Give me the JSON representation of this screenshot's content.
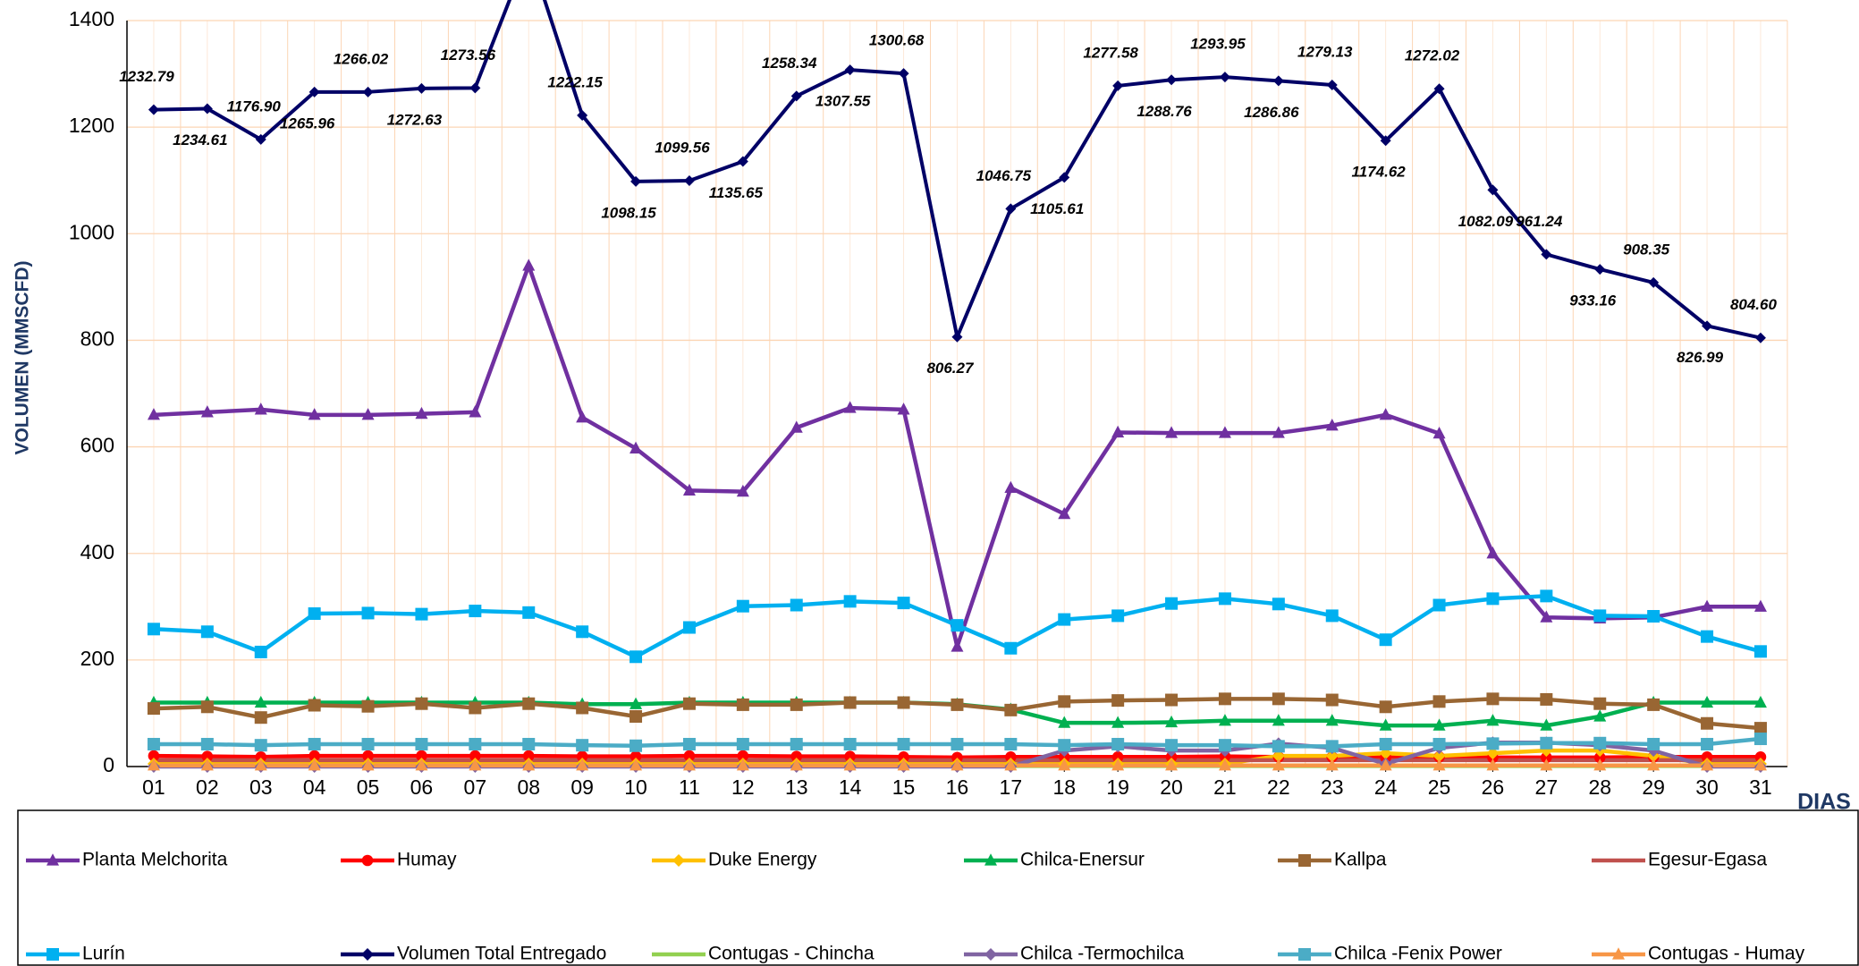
{
  "chart_data": {
    "type": "line",
    "y_label": "VOLUMEN (MMSCFD)",
    "x_label": "DIAS",
    "categories": [
      "01",
      "02",
      "03",
      "04",
      "05",
      "06",
      "07",
      "08",
      "09",
      "10",
      "11",
      "12",
      "13",
      "14",
      "15",
      "16",
      "17",
      "18",
      "19",
      "20",
      "21",
      "22",
      "23",
      "24",
      "25",
      "26",
      "27",
      "28",
      "29",
      "30",
      "31"
    ],
    "ylim": [
      0,
      1400
    ],
    "yticks": [
      0,
      200,
      400,
      600,
      800,
      1000,
      1200,
      1400
    ],
    "grid": true,
    "series": [
      {
        "name": "Planta Melchorita",
        "color": "#7030a0",
        "marker": "triangle",
        "values": [
          660,
          665,
          670,
          660,
          660,
          662,
          665,
          940,
          655,
          597,
          518,
          516,
          636,
          673,
          670,
          225,
          523,
          474,
          627,
          626,
          626,
          626,
          640,
          660,
          625,
          400,
          280,
          278,
          280,
          300,
          300
        ]
      },
      {
        "name": "Humay",
        "color": "#ff0000",
        "marker": "circle",
        "values": [
          20,
          19,
          18,
          20,
          20,
          20,
          20,
          20,
          19,
          19,
          20,
          20,
          19,
          19,
          18,
          17,
          18,
          18,
          18,
          18,
          19,
          18,
          18,
          17,
          18,
          17,
          17,
          17,
          18,
          18,
          18
        ]
      },
      {
        "name": "Duke Energy",
        "color": "#ffc000",
        "marker": "diamond",
        "values": [
          5,
          5,
          5,
          5,
          5,
          5,
          5,
          5,
          5,
          5,
          5,
          5,
          5,
          5,
          5,
          5,
          5,
          5,
          5,
          5,
          5,
          20,
          20,
          25,
          20,
          25,
          30,
          30,
          20,
          5,
          5
        ]
      },
      {
        "name": "Chilca-Enersur",
        "color": "#00b050",
        "marker": "triangle",
        "values": [
          120,
          120,
          120,
          120,
          120,
          120,
          120,
          120,
          117,
          117,
          120,
          120,
          120,
          120,
          120,
          117,
          107,
          82,
          82,
          83,
          86,
          86,
          86,
          77,
          77,
          86,
          77,
          94,
          120,
          120,
          120
        ]
      },
      {
        "name": "Kallpa",
        "color": "#996633",
        "marker": "square",
        "values": [
          109,
          112,
          92,
          115,
          113,
          118,
          110,
          118,
          110,
          94,
          118,
          116,
          116,
          120,
          120,
          116,
          106,
          122,
          124,
          125,
          127,
          127,
          125,
          112,
          122,
          127,
          126,
          118,
          116,
          81,
          72
        ]
      },
      {
        "name": "Egesur-Egasa",
        "color": "#c0504d",
        "values": [
          12,
          12,
          12,
          12,
          12,
          12,
          12,
          12,
          12,
          12,
          12,
          12,
          12,
          12,
          12,
          12,
          12,
          12,
          12,
          12,
          12,
          12,
          12,
          12,
          12,
          12,
          12,
          12,
          12,
          12,
          12
        ]
      },
      {
        "name": "Lurín",
        "color": "#00b0f0",
        "marker": "square",
        "values": [
          258,
          253,
          215,
          287,
          288,
          286,
          292,
          289,
          253,
          206,
          261,
          301,
          303,
          310,
          307,
          265,
          222,
          276,
          283,
          306,
          315,
          305,
          283,
          238,
          303,
          315,
          320,
          283,
          282,
          244,
          216
        ]
      },
      {
        "name": "Volumen Total Entregado",
        "color": "#000066",
        "marker": "diamond",
        "values": [
          1232.79,
          1234.61,
          1176.9,
          1265.96,
          1266.02,
          1272.63,
          1273.56,
          1530,
          1222.15,
          1098.15,
          1099.56,
          1135.65,
          1258.34,
          1307.55,
          1300.68,
          806.27,
          1046.75,
          1105.61,
          1277.58,
          1288.76,
          1293.95,
          1286.86,
          1279.13,
          1174.62,
          1272.02,
          1082.09,
          961.24,
          933.16,
          908.35,
          826.99,
          804.6
        ],
        "value_labels": [
          "1232.79",
          "1234.61",
          "1176.90",
          "1265.96",
          "1266.02",
          "1272.63",
          "1273.56",
          null,
          "1222.15",
          "1098.15",
          "1099.56",
          "1135.65",
          "1258.34",
          "1307.55",
          "1300.68",
          "806.27",
          "1046.75",
          "1105.61",
          "1277.58",
          "1288.76",
          "1293.95",
          "1286.86",
          "1279.13",
          "1174.62",
          "1272.02",
          "1082.09",
          "961.24",
          "933.16",
          "908.35",
          "826.99",
          "804.60"
        ]
      },
      {
        "name": "Contugas - Chincha",
        "color": "#92d050",
        "values": [
          1,
          1,
          1,
          1,
          1,
          1,
          1,
          1,
          1,
          1,
          1,
          1,
          1,
          1,
          1,
          1,
          1,
          1,
          1,
          1,
          1,
          1,
          1,
          1,
          1,
          1,
          1,
          1,
          1,
          1,
          1
        ]
      },
      {
        "name": "Chilca -Termochilca",
        "color": "#8064a2",
        "marker": "diamond",
        "values": [
          0,
          0,
          0,
          0,
          0,
          0,
          0,
          0,
          0,
          0,
          0,
          0,
          0,
          0,
          0,
          0,
          0,
          30,
          38,
          30,
          30,
          43,
          35,
          5,
          35,
          45,
          45,
          40,
          30,
          0,
          0
        ]
      },
      {
        "name": "Chilca -Fenix Power",
        "color": "#4bacc6",
        "marker": "square",
        "values": [
          42,
          42,
          40,
          42,
          42,
          42,
          42,
          42,
          40,
          39,
          42,
          42,
          42,
          42,
          42,
          42,
          42,
          40,
          42,
          40,
          40,
          38,
          38,
          42,
          42,
          43,
          44,
          44,
          42,
          42,
          52
        ]
      },
      {
        "name": "Contugas - Humay",
        "color": "#f79646",
        "marker": "triangle",
        "values": [
          2,
          2,
          2,
          2,
          2,
          2,
          2,
          2,
          2,
          2,
          2,
          2,
          2,
          2,
          2,
          2,
          2,
          2,
          2,
          2,
          2,
          2,
          2,
          2,
          2,
          2,
          2,
          2,
          2,
          2,
          2
        ]
      }
    ]
  }
}
